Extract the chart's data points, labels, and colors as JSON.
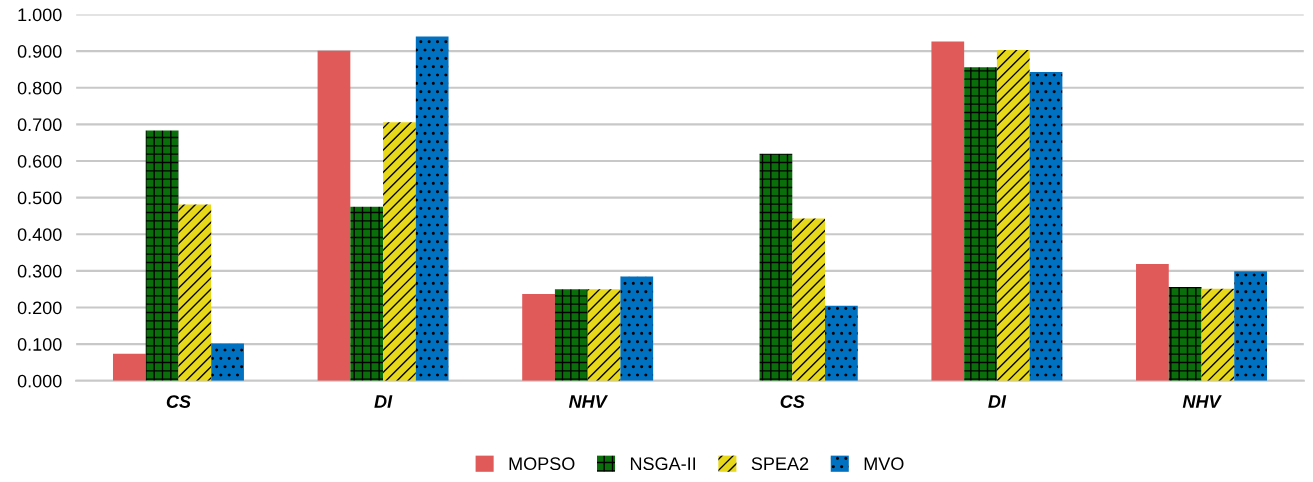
{
  "chart_data": {
    "type": "bar",
    "categories": [
      "CS",
      "DI",
      "NHV",
      "CS",
      "DI",
      "NHV"
    ],
    "series": [
      {
        "name": "MOPSO",
        "color": "#e05a5a",
        "values": [
          0.074,
          0.901,
          0.237,
          0,
          0.926,
          0.319
        ]
      },
      {
        "name": "NSGA-II",
        "color": "#0a6e0a",
        "values": [
          0.683,
          0.475,
          0.25,
          0.62,
          0.856,
          0.256
        ]
      },
      {
        "name": "SPEA2",
        "color": "#e8d81a",
        "values": [
          0.481,
          0.706,
          0.25,
          0.443,
          0.903,
          0.251
        ]
      },
      {
        "name": "MVO",
        "color": "#0070c0",
        "values": [
          0.102,
          0.94,
          0.285,
          0.205,
          0.843,
          0.299
        ]
      }
    ],
    "ylim": [
      0,
      1
    ],
    "yticks": [
      {
        "value": 0,
        "label": "0.000"
      },
      {
        "value": 0.1,
        "label": "0.100"
      },
      {
        "value": 0.2,
        "label": "0.200"
      },
      {
        "value": 0.3,
        "label": "0.300"
      },
      {
        "value": 0.4,
        "label": "0.400"
      },
      {
        "value": 0.5,
        "label": "0.500"
      },
      {
        "value": 0.6,
        "label": "0.600"
      },
      {
        "value": 0.7,
        "label": "0.700"
      },
      {
        "value": 0.8,
        "label": "0.800"
      },
      {
        "value": 0.9,
        "label": "0.900"
      },
      {
        "value": 1,
        "label": "1.000"
      }
    ],
    "grid": "y",
    "legend": "bottom"
  }
}
